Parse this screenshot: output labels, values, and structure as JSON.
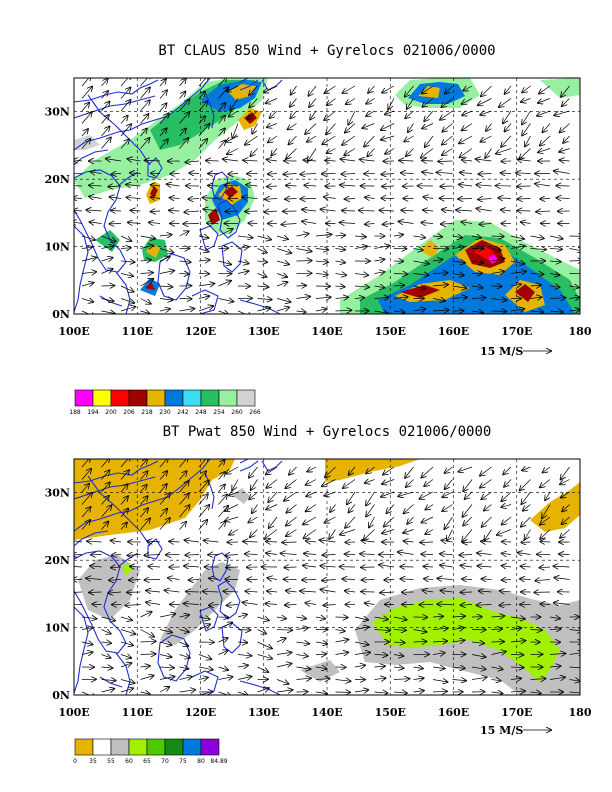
{
  "chart_data": [
    {
      "type": "heatmap",
      "title": "BT CLAUS 850 Wind + Gyrelocs 021006/0000",
      "x_ticks": [
        "100E",
        "110E",
        "120E",
        "130E",
        "140E",
        "150E",
        "160E",
        "170E",
        "180"
      ],
      "y_ticks": [
        "0N",
        "10N",
        "20N",
        "30N"
      ],
      "xlim": [
        100,
        180
      ],
      "ylim": [
        0,
        35
      ],
      "grid": "dashed",
      "vector_reference_label": "15 M/S",
      "colorbar_levels": [
        "188",
        "194",
        "200",
        "206",
        "218",
        "230",
        "242",
        "248",
        "254",
        "260",
        "266"
      ],
      "colorbar_colors": [
        "#ff00ff",
        "#ffff00",
        "#ff0000",
        "#a00000",
        "#e6b400",
        "#0078dc",
        "#3cdcf0",
        "#28be64",
        "#96f0a0",
        "#d2d2d2"
      ]
    },
    {
      "type": "heatmap",
      "title": "BT Pwat 850 Wind + Gyrelocs 021006/0000",
      "x_ticks": [
        "100E",
        "110E",
        "120E",
        "130E",
        "140E",
        "150E",
        "160E",
        "170E",
        "180"
      ],
      "y_ticks": [
        "0N",
        "10N",
        "20N",
        "30N"
      ],
      "xlim": [
        100,
        180
      ],
      "ylim": [
        0,
        35
      ],
      "grid": "dashed",
      "vector_reference_label": "15 M/S",
      "colorbar_levels": [
        "0",
        "35",
        "55",
        "60",
        "65",
        "70",
        "75",
        "80",
        "84.89"
      ],
      "colorbar_colors": [
        "#e6b400",
        "#ffffff",
        "#c0c0c0",
        "#a0f000",
        "#50c800",
        "#148c14",
        "#0078dc",
        "#8c00dc"
      ]
    }
  ]
}
